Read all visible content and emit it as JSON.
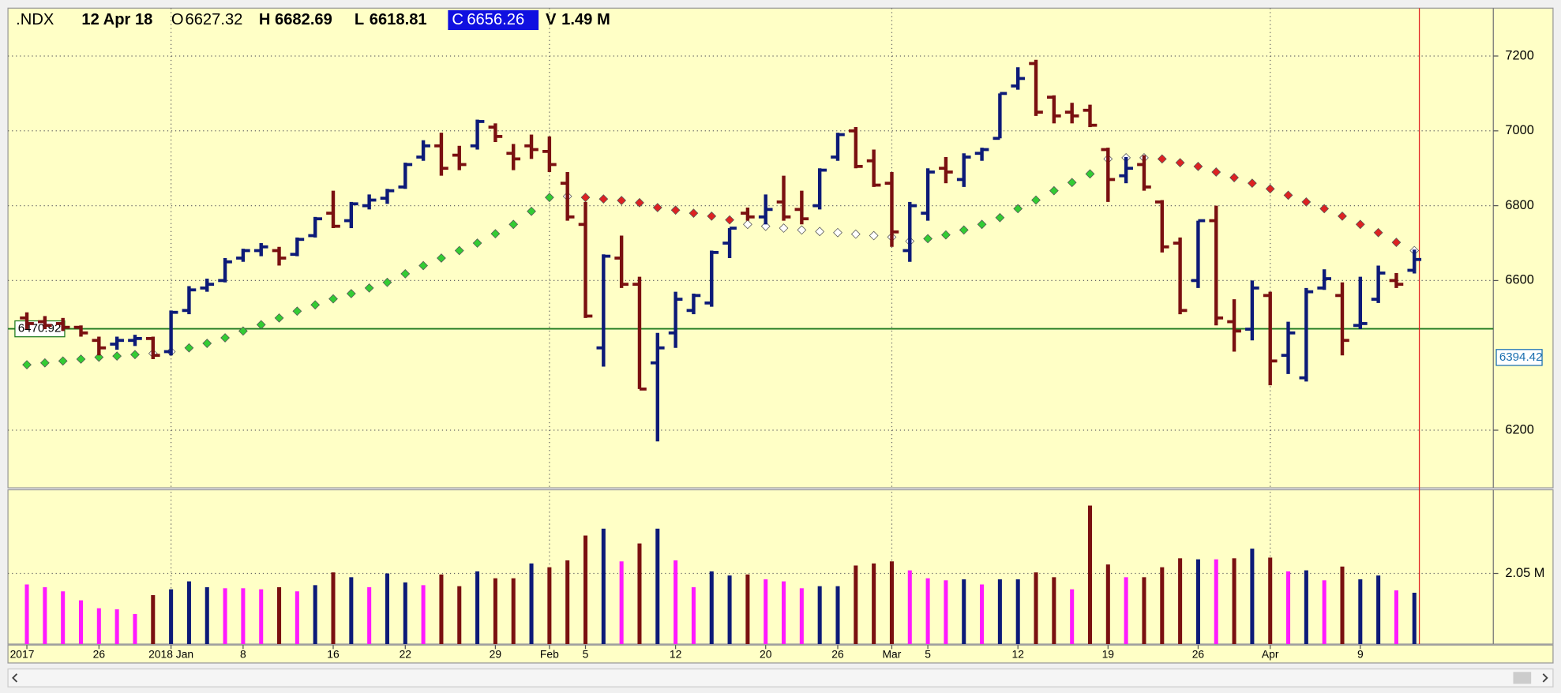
{
  "chart_data": {
    "type": "ohlc",
    "header": {
      "symbol": ".NDX",
      "date": "12 Apr 18",
      "fields": [
        {
          "label": "O",
          "value": "6627.32"
        },
        {
          "label": "H",
          "value": "6682.69"
        },
        {
          "label": "L",
          "value": "6618.81"
        },
        {
          "label": "C",
          "value": "6656.26"
        },
        {
          "label": "V",
          "value": "1.49 M"
        }
      ]
    },
    "categories": [
      "2017",
      null,
      null,
      null,
      "26",
      null,
      null,
      null,
      "2018 Jan",
      null,
      null,
      null,
      "8",
      null,
      null,
      null,
      null,
      "16",
      null,
      null,
      null,
      "22",
      null,
      null,
      null,
      null,
      "29",
      null,
      null,
      "Feb",
      null,
      "5",
      null,
      null,
      null,
      null,
      "12",
      null,
      null,
      null,
      null,
      "20",
      null,
      null,
      null,
      "26",
      null,
      null,
      "Mar",
      null,
      "5",
      null,
      null,
      null,
      null,
      "12",
      null,
      null,
      null,
      null,
      "19",
      null,
      null,
      null,
      null,
      "26",
      null,
      null,
      null,
      "Apr",
      null,
      null,
      null,
      null,
      "9",
      null,
      null,
      null
    ],
    "open": [
      6500,
      6490,
      6485,
      6475,
      6440,
      6430,
      6440,
      6445,
      6410,
      6520,
      6580,
      6600,
      6660,
      6680,
      6680,
      6670,
      6720,
      6780,
      6760,
      6800,
      6820,
      6850,
      6930,
      6960,
      6935,
      6960,
      7010,
      6940,
      6960,
      6945,
      6860,
      6750,
      6420,
      6660,
      6590,
      6380,
      6460,
      6520,
      6540,
      6700,
      6780,
      6770,
      6810,
      6790,
      6800,
      6930,
      7000,
      6920,
      6860,
      6680,
      6780,
      6900,
      6870,
      6940,
      6980,
      7120,
      7180,
      7090,
      7050,
      7055,
      6950,
      6880,
      6910,
      6810,
      6700,
      6600,
      6760,
      6490,
      6470,
      6560,
      6400,
      6340,
      6580,
      6560,
      6480,
      6550,
      6600,
      6627.32
    ],
    "high": [
      6515,
      6505,
      6500,
      6480,
      6450,
      6450,
      6455,
      6450,
      6520,
      6585,
      6605,
      6660,
      6685,
      6700,
      6690,
      6715,
      6770,
      6840,
      6810,
      6830,
      6845,
      6915,
      6975,
      6995,
      6960,
      7030,
      7020,
      6965,
      6990,
      6985,
      6890,
      6810,
      6670,
      6720,
      6610,
      6460,
      6570,
      6565,
      6680,
      6740,
      6795,
      6830,
      6880,
      6840,
      6900,
      6995,
      7010,
      6950,
      6890,
      6810,
      6900,
      6930,
      6940,
      6955,
      7100,
      7170,
      7190,
      7095,
      7075,
      7070,
      6955,
      6930,
      6935,
      6815,
      6715,
      6760,
      6800,
      6550,
      6600,
      6570,
      6490,
      6580,
      6630,
      6595,
      6610,
      6640,
      6620,
      6682.69
    ],
    "low": [
      6470,
      6470,
      6465,
      6450,
      6400,
      6415,
      6425,
      6390,
      6400,
      6510,
      6570,
      6595,
      6650,
      6665,
      6640,
      6665,
      6715,
      6740,
      6740,
      6790,
      6805,
      6845,
      6920,
      6880,
      6895,
      6950,
      6970,
      6895,
      6925,
      6890,
      6760,
      6500,
      6370,
      6580,
      6310,
      6170,
      6420,
      6510,
      6530,
      6660,
      6760,
      6750,
      6760,
      6750,
      6790,
      6920,
      6900,
      6850,
      6690,
      6650,
      6760,
      6860,
      6850,
      6920,
      6980,
      7110,
      7040,
      7020,
      7020,
      7010,
      6810,
      6860,
      6840,
      6675,
      6510,
      6580,
      6480,
      6410,
      6440,
      6320,
      6350,
      6330,
      6575,
      6400,
      6470,
      6540,
      6580,
      6618.81
    ],
    "close": [
      6485,
      6480,
      6475,
      6460,
      6420,
      6440,
      6445,
      6400,
      6515,
      6575,
      6590,
      6650,
      6680,
      6690,
      6660,
      6710,
      6765,
      6745,
      6805,
      6815,
      6840,
      6910,
      6960,
      6900,
      6910,
      7025,
      6985,
      6925,
      6950,
      6910,
      6770,
      6505,
      6665,
      6590,
      6310,
      6420,
      6550,
      6560,
      6675,
      6740,
      6770,
      6790,
      6770,
      6765,
      6895,
      6990,
      6905,
      6855,
      6730,
      6800,
      6890,
      6890,
      6930,
      6950,
      7100,
      7140,
      7050,
      7040,
      7040,
      7015,
      6870,
      6900,
      6850,
      6690,
      6520,
      6760,
      6500,
      6465,
      6580,
      6385,
      6460,
      6570,
      6605,
      6440,
      6485,
      6620,
      6590,
      6656.26
    ],
    "up_color": "#0c1a78",
    "down_color": "#7a1010",
    "ylim": [
      6046,
      7328
    ],
    "yticks": [
      6200,
      6600,
      6800,
      7000,
      7200
    ],
    "grid": true,
    "hline": {
      "value": 6470.92,
      "color": "#1e7a1e"
    },
    "price_marker": {
      "value": 6394.42,
      "color": "#1a6fb0"
    },
    "sar": {
      "values": [
        6375,
        6380,
        6385,
        6390,
        6395,
        6398,
        6402,
        6405,
        6410,
        6420,
        6432,
        6447,
        6465,
        6482,
        6500,
        6518,
        6535,
        6551,
        6565,
        6580,
        6595,
        6618,
        6640,
        6660,
        6680,
        6700,
        6725,
        6750,
        6785,
        6822,
        6825,
        6822,
        6818,
        6814,
        6808,
        6795,
        6788,
        6780,
        6772,
        6762,
        6750,
        6745,
        6740,
        6735,
        6731,
        6728,
        6724,
        6720,
        6716,
        6705,
        6712,
        6722,
        6735,
        6750,
        6768,
        6792,
        6815,
        6840,
        6862,
        6885,
        6925,
        6928,
        6928,
        6925,
        6915,
        6905,
        6890,
        6875,
        6860,
        6845,
        6828,
        6810,
        6792,
        6772,
        6750,
        6728,
        6702,
        6680
      ],
      "colors": [
        "#33cc33",
        "#33cc33",
        "#33cc33",
        "#33cc33",
        "#33cc33",
        "#33cc33",
        "#33cc33",
        "#ffffff",
        "#ffffff",
        "#33cc33",
        "#33cc33",
        "#33cc33",
        "#33cc33",
        "#33cc33",
        "#33cc33",
        "#33cc33",
        "#33cc33",
        "#33cc33",
        "#33cc33",
        "#33cc33",
        "#33cc33",
        "#33cc33",
        "#33cc33",
        "#33cc33",
        "#33cc33",
        "#33cc33",
        "#33cc33",
        "#33cc33",
        "#33cc33",
        "#33cc33",
        "#ffffff",
        "#dd2222",
        "#dd2222",
        "#dd2222",
        "#dd2222",
        "#dd2222",
        "#dd2222",
        "#dd2222",
        "#dd2222",
        "#dd2222",
        "#ffffff",
        "#ffffff",
        "#ffffff",
        "#ffffff",
        "#ffffff",
        "#ffffff",
        "#ffffff",
        "#ffffff",
        "#ffffff",
        "#ffffff",
        "#33cc33",
        "#33cc33",
        "#33cc33",
        "#33cc33",
        "#33cc33",
        "#33cc33",
        "#33cc33",
        "#33cc33",
        "#33cc33",
        "#33cc33",
        "#ffffff",
        "#ffffff",
        "#ffffff",
        "#dd2222",
        "#dd2222",
        "#dd2222",
        "#dd2222",
        "#dd2222",
        "#dd2222",
        "#dd2222",
        "#dd2222",
        "#dd2222",
        "#dd2222",
        "#dd2222",
        "#dd2222",
        "#dd2222",
        "#dd2222",
        "#ffffff"
      ]
    },
    "volume": {
      "values": [
        1.73,
        1.65,
        1.53,
        1.27,
        1.04,
        1.01,
        0.87,
        1.42,
        1.59,
        1.82,
        1.65,
        1.62,
        1.62,
        1.59,
        1.65,
        1.53,
        1.71,
        2.08,
        1.94,
        1.65,
        2.05,
        1.79,
        1.71,
        2.02,
        1.68,
        2.11,
        1.91,
        1.91,
        2.34,
        2.23,
        2.43,
        3.15,
        3.35,
        2.4,
        2.92,
        3.35,
        2.43,
        1.65,
        2.11,
        1.99,
        2.02,
        1.88,
        1.82,
        1.62,
        1.68,
        1.68,
        2.28,
        2.34,
        2.4,
        2.14,
        1.91,
        1.85,
        1.88,
        1.73,
        1.88,
        1.88,
        2.08,
        1.94,
        1.59,
        4.02,
        2.31,
        1.94,
        1.94,
        2.23,
        2.49,
        2.46,
        2.46,
        2.49,
        2.77,
        2.51,
        2.11,
        2.14,
        1.85,
        2.25,
        1.88,
        1.99,
        1.56,
        1.49
      ],
      "colors": [
        "#ff1aff",
        "#ff1aff",
        "#ff1aff",
        "#ff1aff",
        "#ff1aff",
        "#ff1aff",
        "#ff1aff",
        "#7a1010",
        "#0c1a78",
        "#0c1a78",
        "#0c1a78",
        "#ff1aff",
        "#ff1aff",
        "#ff1aff",
        "#7a1010",
        "#ff1aff",
        "#0c1a78",
        "#7a1010",
        "#0c1a78",
        "#ff1aff",
        "#0c1a78",
        "#0c1a78",
        "#ff1aff",
        "#7a1010",
        "#7a1010",
        "#0c1a78",
        "#7a1010",
        "#7a1010",
        "#0c1a78",
        "#7a1010",
        "#7a1010",
        "#7a1010",
        "#0c1a78",
        "#ff1aff",
        "#7a1010",
        "#0c1a78",
        "#ff1aff",
        "#ff1aff",
        "#0c1a78",
        "#0c1a78",
        "#7a1010",
        "#ff1aff",
        "#ff1aff",
        "#ff1aff",
        "#0c1a78",
        "#0c1a78",
        "#7a1010",
        "#7a1010",
        "#7a1010",
        "#ff1aff",
        "#ff1aff",
        "#ff1aff",
        "#0c1a78",
        "#ff1aff",
        "#0c1a78",
        "#0c1a78",
        "#7a1010",
        "#7a1010",
        "#ff1aff",
        "#7a1010",
        "#7a1010",
        "#ff1aff",
        "#7a1010",
        "#7a1010",
        "#7a1010",
        "#0c1a78",
        "#ff1aff",
        "#7a1010",
        "#0c1a78",
        "#7a1010",
        "#ff1aff",
        "#0c1a78",
        "#ff1aff",
        "#7a1010",
        "#0c1a78",
        "#0c1a78",
        "#ff1aff",
        "#0c1a78"
      ],
      "ylim": [
        0,
        4.42
      ],
      "yticks": [
        {
          "value": 2.05,
          "label": "2.05 M"
        }
      ]
    }
  }
}
